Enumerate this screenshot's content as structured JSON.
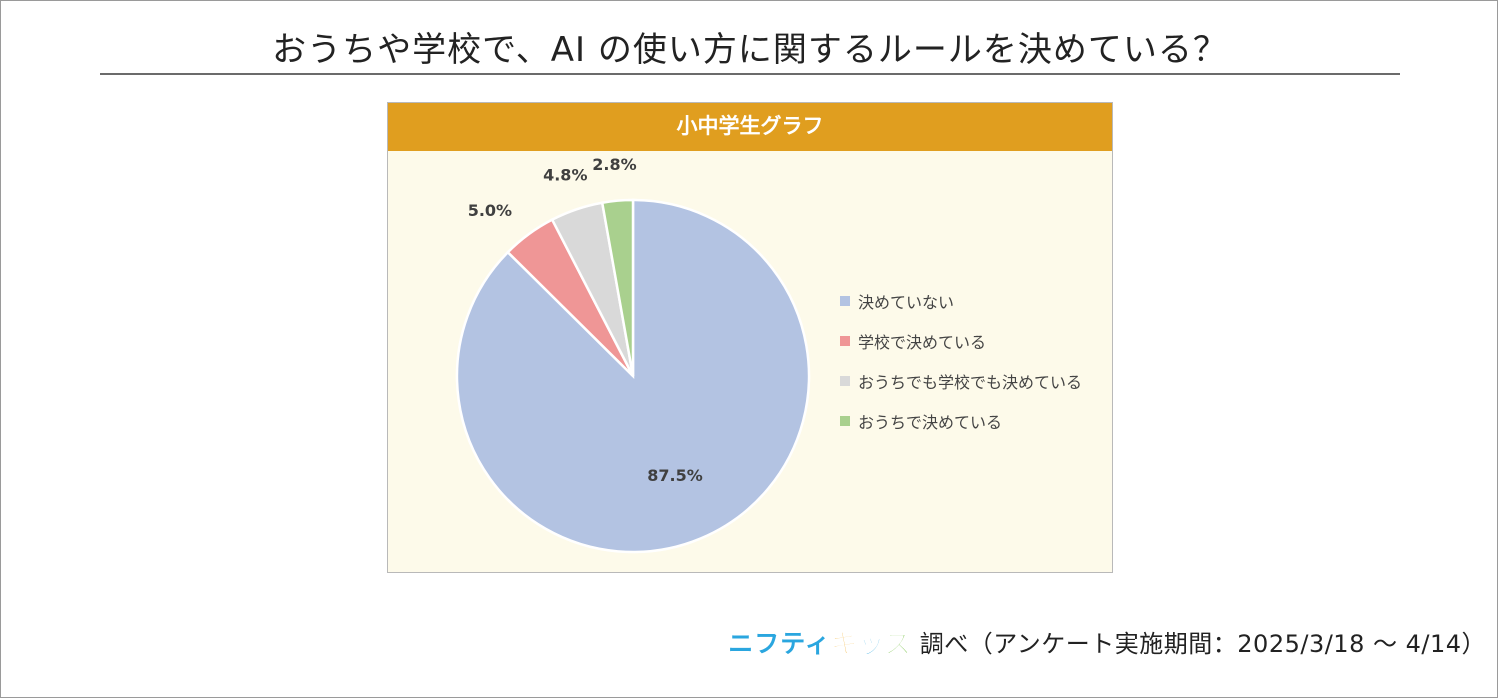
{
  "page_title": "おうちや学校で、AI の使い方に関するルールを決めている？",
  "credit": {
    "brand_part1": "ニフティ",
    "brand_part2": "キッズ",
    "text": "調べ（アンケート実施期間：2025/3/18 ～ 4/14）",
    "brand_colors": [
      "#2aa6df",
      "#f0a81a",
      "#2aa6df",
      "#6fbf3a"
    ]
  },
  "chart_data": {
    "type": "pie",
    "title": "小中学生グラフ",
    "header_color": "#e09e1f",
    "legend_position": "right",
    "start_angle_deg": 0,
    "direction": "clockwise",
    "slices": [
      {
        "label": "決めていない",
        "value": 87.5,
        "display": "87.5%",
        "color": "#b3c3e2"
      },
      {
        "label": "学校で決めている",
        "value": 5.0,
        "display": "5.0%",
        "color": "#ef9696"
      },
      {
        "label": "おうちでも学校でも決めている",
        "value": 4.8,
        "display": "4.8%",
        "color": "#d9d9d9"
      },
      {
        "label": "おうちで決めている",
        "value": 2.8,
        "display": "2.8%",
        "color": "#a9d08e"
      }
    ]
  }
}
